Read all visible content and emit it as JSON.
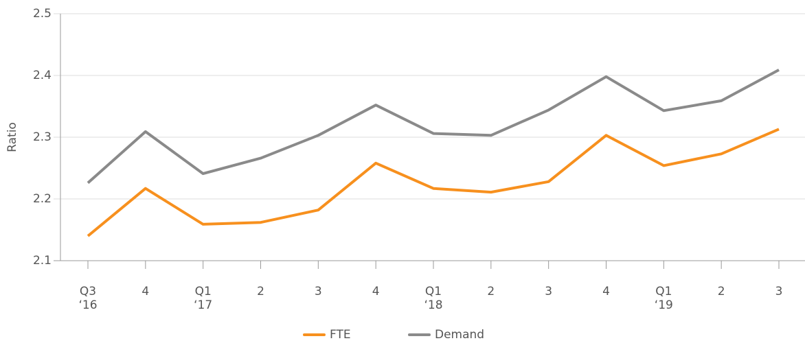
{
  "chart_data": {
    "type": "line",
    "y_label": "Ratio",
    "categories": [
      "Q3\n‘16",
      "4",
      "Q1\n‘17",
      "2",
      "3",
      "4",
      "Q1\n‘18",
      "2",
      "3",
      "4",
      "Q1\n‘19",
      "2",
      "3"
    ],
    "series": [
      {
        "name": "FTE",
        "color": "#f7901e",
        "values": [
          2.14,
          2.217,
          2.159,
          2.162,
          2.182,
          2.258,
          2.217,
          2.211,
          2.228,
          2.303,
          2.254,
          2.273,
          2.313
        ]
      },
      {
        "name": "Demand",
        "color": "#8a8a8a",
        "values": [
          2.226,
          2.309,
          2.241,
          2.266,
          2.303,
          2.352,
          2.306,
          2.303,
          2.344,
          2.398,
          2.343,
          2.359,
          2.409
        ]
      }
    ],
    "ylim": [
      2.1,
      2.5
    ],
    "yticks": [
      2.1,
      2.2,
      2.3,
      2.4,
      2.5
    ],
    "grid": true,
    "legend": "bottom"
  }
}
